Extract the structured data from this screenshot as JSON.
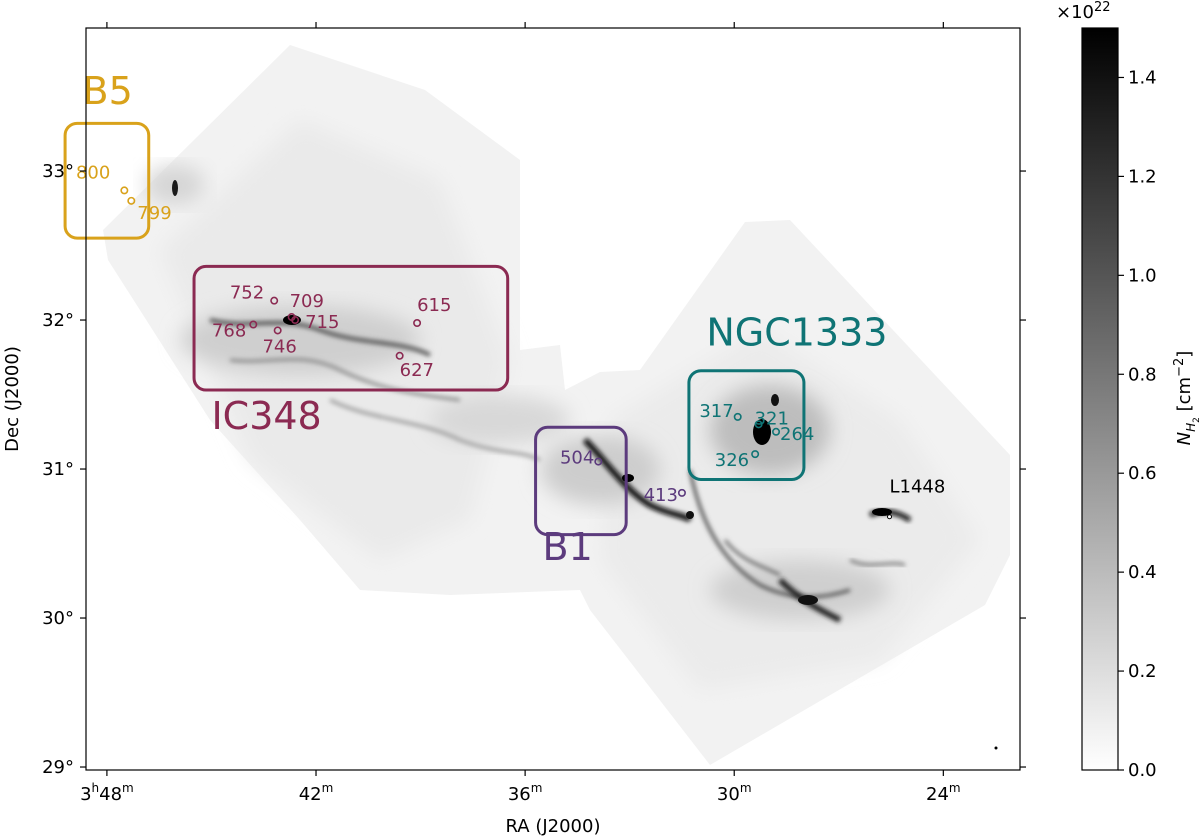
{
  "chart_data": [
    {
      "type": "heatmap",
      "title": "",
      "xlabel": "RA (J2000)",
      "ylabel": "Dec (J2000)",
      "x_ticks": [
        {
          "value": 48,
          "label": "3",
          "sup1": "h",
          "main2": "48",
          "sup2": "m"
        },
        {
          "value": 42,
          "label": "42",
          "sup": "m"
        },
        {
          "value": 36,
          "label": "36",
          "sup": "m"
        },
        {
          "value": 30,
          "label": "30",
          "sup": "m"
        },
        {
          "value": 24,
          "label": "24",
          "sup": "m"
        }
      ],
      "y_ticks": [
        {
          "value": 33,
          "label": "33°"
        },
        {
          "value": 32,
          "label": "32°"
        },
        {
          "value": 31,
          "label": "31°"
        },
        {
          "value": 30,
          "label": "30°"
        },
        {
          "value": 29,
          "label": "29°"
        }
      ],
      "xlim": [
        48.6,
        21.8
      ],
      "ylim": [
        28.98,
        33.96
      ],
      "regions": [
        {
          "name": "B5",
          "color": "#d9a21b",
          "ra": [
            46.8,
            49.2
          ],
          "dec": [
            32.55,
            33.32
          ],
          "label_ra": 48.7,
          "label_dec": 33.45,
          "sources": [
            {
              "id": "800",
              "ra": 47.5,
              "dec": 32.87
            },
            {
              "id": "799",
              "ra": 47.3,
              "dec": 32.8
            }
          ]
        },
        {
          "name": "IC348",
          "color": "#8b2a52",
          "ra": [
            36.5,
            45.5
          ],
          "dec": [
            31.53,
            32.36
          ],
          "label_ra": 45.0,
          "label_dec": 31.27,
          "sources": [
            {
              "id": "752",
              "ra": 43.2,
              "dec": 32.13
            },
            {
              "id": "709",
              "ra": 42.7,
              "dec": 32.02
            },
            {
              "id": "715",
              "ra": 42.6,
              "dec": 32.0
            },
            {
              "id": "768",
              "ra": 43.8,
              "dec": 31.97
            },
            {
              "id": "746",
              "ra": 43.1,
              "dec": 31.93
            },
            {
              "id": "615",
              "ra": 39.1,
              "dec": 31.98
            },
            {
              "id": "627",
              "ra": 39.6,
              "dec": 31.76
            }
          ]
        },
        {
          "name": "NGC1333",
          "color": "#0f7475",
          "ra": [
            28.0,
            31.3
          ],
          "dec": [
            30.93,
            31.66
          ],
          "label_ra": 30.8,
          "label_dec": 31.83,
          "sources": [
            {
              "id": "317",
              "ra": 29.9,
              "dec": 31.35
            },
            {
              "id": "321",
              "ra": 29.3,
              "dec": 31.3
            },
            {
              "id": "264",
              "ra": 28.8,
              "dec": 31.25
            },
            {
              "id": "326",
              "ra": 29.4,
              "dec": 31.1
            }
          ]
        },
        {
          "name": "B1",
          "color": "#5c3b7d",
          "ra": [
            33.1,
            35.7
          ],
          "dec": [
            30.56,
            31.28
          ],
          "label_ra": 35.5,
          "label_dec": 30.39,
          "sources": [
            {
              "id": "504",
              "ra": 33.9,
              "dec": 31.05
            },
            {
              "id": "413",
              "ra": 31.5,
              "dec": 30.84
            }
          ]
        }
      ],
      "annotations": [
        {
          "text": "L1448",
          "ra": 25.2,
          "dec": 30.72,
          "color": "#000000"
        }
      ]
    },
    {
      "type": "colorbar",
      "label_main": "N",
      "label_sub": "H",
      "label_subsub": "2",
      "label_unit_open": " [cm",
      "label_unit_exp": "−2",
      "label_unit_close": "]",
      "multiplier_base": "×10",
      "multiplier_exp": "22",
      "range": [
        0.0,
        1.5
      ],
      "ticks": [
        {
          "value": 0.0,
          "label": "0.0"
        },
        {
          "value": 0.2,
          "label": "0.2"
        },
        {
          "value": 0.4,
          "label": "0.4"
        },
        {
          "value": 0.6,
          "label": "0.6"
        },
        {
          "value": 0.8,
          "label": "0.8"
        },
        {
          "value": 1.0,
          "label": "1.0"
        },
        {
          "value": 1.2,
          "label": "1.2"
        },
        {
          "value": 1.4,
          "label": "1.4"
        }
      ],
      "colors": [
        "#ffffff",
        "#000000"
      ]
    }
  ]
}
